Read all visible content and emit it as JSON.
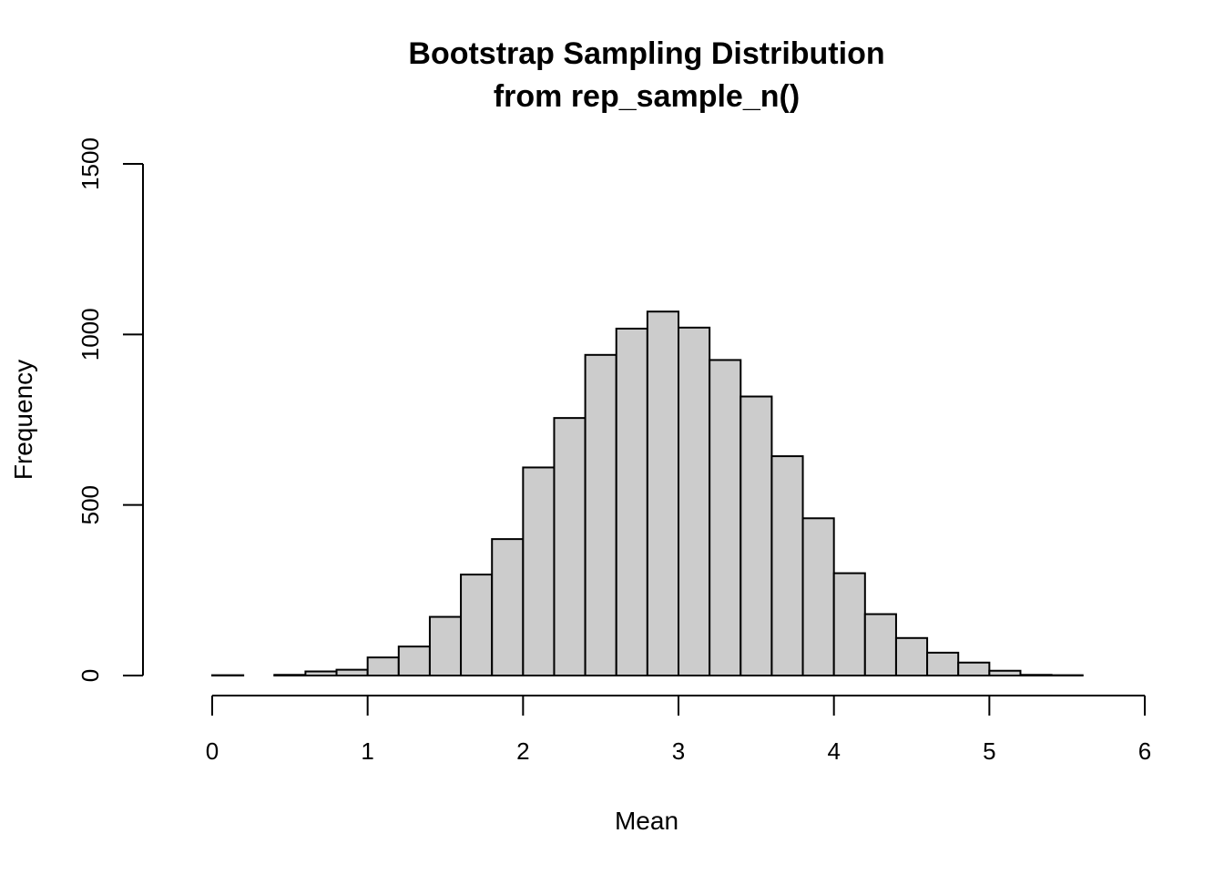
{
  "chart_data": {
    "type": "bar",
    "title": [
      "Bootstrap Sampling Distribution",
      "from rep_sample_n()"
    ],
    "xlabel": "Mean",
    "ylabel": "Frequency",
    "xlim": [
      0,
      6
    ],
    "ylim": [
      0,
      1500
    ],
    "x_ticks": [
      "0",
      "1",
      "2",
      "3",
      "4",
      "5",
      "6"
    ],
    "y_ticks": [
      "0",
      "500",
      "1000",
      "1500"
    ],
    "grid": false,
    "bar_color": "#cccccc",
    "bar_edge_color": "#000000",
    "bins": [
      {
        "x0": -0.2,
        "x1": 0.0,
        "count": 0
      },
      {
        "x0": 0.0,
        "x1": 0.2,
        "count": 1
      },
      {
        "x0": 0.2,
        "x1": 0.4,
        "count": 0
      },
      {
        "x0": 0.4,
        "x1": 0.6,
        "count": 2
      },
      {
        "x0": 0.6,
        "x1": 0.8,
        "count": 12
      },
      {
        "x0": 0.8,
        "x1": 1.0,
        "count": 17
      },
      {
        "x0": 1.0,
        "x1": 1.2,
        "count": 53
      },
      {
        "x0": 1.2,
        "x1": 1.4,
        "count": 85
      },
      {
        "x0": 1.4,
        "x1": 1.6,
        "count": 172
      },
      {
        "x0": 1.6,
        "x1": 1.8,
        "count": 296
      },
      {
        "x0": 1.8,
        "x1": 2.0,
        "count": 400
      },
      {
        "x0": 2.0,
        "x1": 2.2,
        "count": 610
      },
      {
        "x0": 2.2,
        "x1": 2.4,
        "count": 755
      },
      {
        "x0": 2.4,
        "x1": 2.6,
        "count": 940
      },
      {
        "x0": 2.6,
        "x1": 2.8,
        "count": 1017
      },
      {
        "x0": 2.8,
        "x1": 3.0,
        "count": 1067
      },
      {
        "x0": 3.0,
        "x1": 3.2,
        "count": 1020
      },
      {
        "x0": 3.2,
        "x1": 3.4,
        "count": 925
      },
      {
        "x0": 3.4,
        "x1": 3.6,
        "count": 818
      },
      {
        "x0": 3.6,
        "x1": 3.8,
        "count": 643
      },
      {
        "x0": 3.8,
        "x1": 4.0,
        "count": 461
      },
      {
        "x0": 4.0,
        "x1": 4.2,
        "count": 300
      },
      {
        "x0": 4.2,
        "x1": 4.4,
        "count": 180
      },
      {
        "x0": 4.4,
        "x1": 4.6,
        "count": 110
      },
      {
        "x0": 4.6,
        "x1": 4.8,
        "count": 67
      },
      {
        "x0": 4.8,
        "x1": 5.0,
        "count": 38
      },
      {
        "x0": 5.0,
        "x1": 5.2,
        "count": 14
      },
      {
        "x0": 5.2,
        "x1": 5.4,
        "count": 2
      },
      {
        "x0": 5.4,
        "x1": 5.6,
        "count": 1
      },
      {
        "x0": 5.6,
        "x1": 5.8,
        "count": 0
      }
    ]
  }
}
